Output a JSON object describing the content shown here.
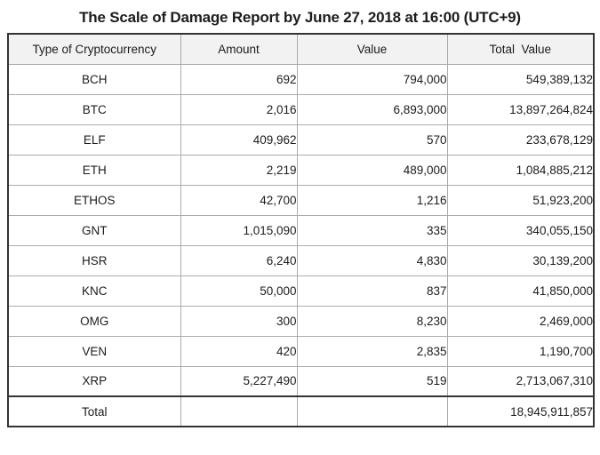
{
  "title": "The Scale of Damage Report by June 27, 2018 at 16:00 (UTC+9)",
  "table": {
    "columns": [
      "Type of Cryptocurrency",
      "Amount",
      "Value",
      "Total  Value"
    ],
    "rows": [
      [
        "BCH",
        "692",
        "794,000",
        "549,389,132"
      ],
      [
        "BTC",
        "2,016",
        "6,893,000",
        "13,897,264,824"
      ],
      [
        "ELF",
        "409,962",
        "570",
        "233,678,129"
      ],
      [
        "ETH",
        "2,219",
        "489,000",
        "1,084,885,212"
      ],
      [
        "ETHOS",
        "42,700",
        "1,216",
        "51,923,200"
      ],
      [
        "GNT",
        "1,015,090",
        "335",
        "340,055,150"
      ],
      [
        "HSR",
        "6,240",
        "4,830",
        "30,139,200"
      ],
      [
        "KNC",
        "50,000",
        "837",
        "41,850,000"
      ],
      [
        "OMG",
        "300",
        "8,230",
        "2,469,000"
      ],
      [
        "VEN",
        "420",
        "2,835",
        "1,190,700"
      ],
      [
        "XRP",
        "5,227,490",
        "519",
        "2,713,067,310"
      ]
    ],
    "total_row": {
      "label": "Total",
      "amount": "",
      "value": "",
      "total_value": "18,945,911,857"
    }
  },
  "chart_data": {
    "type": "table",
    "title": "The Scale of Damage Report by June 27, 2018 at 16:00 (UTC+9)",
    "columns": [
      "Type of Cryptocurrency",
      "Amount",
      "Value",
      "Total Value"
    ],
    "rows": [
      {
        "type": "BCH",
        "amount": 692,
        "value": 794000,
        "total_value": 549389132
      },
      {
        "type": "BTC",
        "amount": 2016,
        "value": 6893000,
        "total_value": 13897264824
      },
      {
        "type": "ELF",
        "amount": 409962,
        "value": 570,
        "total_value": 233678129
      },
      {
        "type": "ETH",
        "amount": 2219,
        "value": 489000,
        "total_value": 1084885212
      },
      {
        "type": "ETHOS",
        "amount": 42700,
        "value": 1216,
        "total_value": 51923200
      },
      {
        "type": "GNT",
        "amount": 1015090,
        "value": 335,
        "total_value": 340055150
      },
      {
        "type": "HSR",
        "amount": 6240,
        "value": 4830,
        "total_value": 30139200
      },
      {
        "type": "KNC",
        "amount": 50000,
        "value": 837,
        "total_value": 41850000
      },
      {
        "type": "OMG",
        "amount": 300,
        "value": 8230,
        "total_value": 2469000
      },
      {
        "type": "VEN",
        "amount": 420,
        "value": 2835,
        "total_value": 1190700
      },
      {
        "type": "XRP",
        "amount": 5227490,
        "value": 519,
        "total_value": 2713067310
      }
    ],
    "total": 18945911857
  },
  "colors": {
    "header_bg": "#f2f2f2",
    "outer_border": "#333333",
    "grid_line": "#ababab",
    "text_color": "#1c1c1c",
    "page_bg": "#ffffff"
  }
}
